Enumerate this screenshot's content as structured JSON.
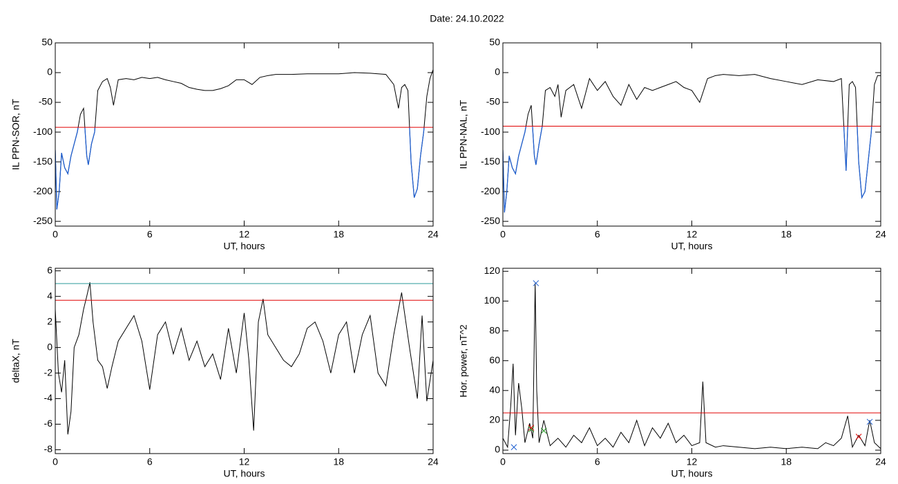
{
  "title": "Date:  24.10.2022",
  "chart_data": [
    {
      "type": "line",
      "ylabel": "IL PPN-SOR, nT",
      "xlabel": "UT, hours",
      "xlim": [
        0,
        24
      ],
      "xticks": [
        0,
        6,
        12,
        18,
        24
      ],
      "ylim": [
        -258,
        50
      ],
      "yticks": [
        50,
        0,
        -50,
        -100,
        -150,
        -200,
        -250
      ],
      "x": [
        0,
        0.1,
        0.25,
        0.4,
        0.6,
        0.8,
        1.0,
        1.2,
        1.4,
        1.6,
        1.8,
        2.0,
        2.1,
        2.3,
        2.5,
        2.7,
        3.0,
        3.3,
        3.5,
        3.7,
        4.0,
        4.5,
        5,
        5.5,
        6,
        6.5,
        7,
        7.5,
        8,
        8.5,
        9,
        9.5,
        10,
        10.5,
        11,
        11.5,
        12,
        12.5,
        13,
        13.5,
        14,
        15,
        16,
        17,
        18,
        19,
        20,
        21,
        21.5,
        21.8,
        22.0,
        22.2,
        22.4,
        22.6,
        22.8,
        23.0,
        23.2,
        23.4,
        23.6,
        23.8,
        24
      ],
      "series": [
        {
          "color": "#000000",
          "values": [
            -130,
            -230,
            -200,
            -135,
            -160,
            -170,
            -140,
            -120,
            -100,
            -70,
            -60,
            -140,
            -155,
            -120,
            -100,
            -30,
            -15,
            -10,
            -25,
            -55,
            -12,
            -10,
            -12,
            -8,
            -10,
            -8,
            -12,
            -15,
            -18,
            -25,
            -28,
            -30,
            -30,
            -27,
            -22,
            -12,
            -12,
            -20,
            -8,
            -5,
            -3,
            -3,
            -2,
            -2,
            -2,
            0,
            -1,
            -3,
            -20,
            -60,
            -25,
            -20,
            -30,
            -150,
            -210,
            -195,
            -140,
            -100,
            -40,
            -10,
            5
          ]
        }
      ],
      "hlines": [
        {
          "value": -92,
          "color": "#e00000",
          "below_color": "#1f5fd0"
        }
      ]
    },
    {
      "type": "line",
      "ylabel": "IL PPN-NAL, nT",
      "xlabel": "UT, hours",
      "xlim": [
        0,
        24
      ],
      "xticks": [
        0,
        6,
        12,
        18,
        24
      ],
      "ylim": [
        -258,
        50
      ],
      "yticks": [
        50,
        0,
        -50,
        -100,
        -150,
        -200,
        -250
      ],
      "x": [
        0,
        0.1,
        0.25,
        0.4,
        0.6,
        0.8,
        1.0,
        1.2,
        1.4,
        1.6,
        1.8,
        2.0,
        2.1,
        2.3,
        2.5,
        2.7,
        3.0,
        3.3,
        3.5,
        3.7,
        4.0,
        4.5,
        5,
        5.5,
        6,
        6.5,
        7,
        7.5,
        8,
        8.5,
        9,
        9.5,
        10,
        10.5,
        11,
        11.5,
        12,
        12.5,
        13,
        13.5,
        14,
        15,
        16,
        17,
        18,
        19,
        20,
        21,
        21.5,
        21.8,
        22.0,
        22.2,
        22.4,
        22.6,
        22.8,
        23.0,
        23.2,
        23.4,
        23.6,
        23.8,
        24
      ],
      "series": [
        {
          "color": "#000000",
          "values": [
            -130,
            -235,
            -200,
            -140,
            -160,
            -170,
            -140,
            -120,
            -100,
            -70,
            -55,
            -140,
            -155,
            -120,
            -90,
            -30,
            -25,
            -40,
            -20,
            -75,
            -30,
            -20,
            -60,
            -10,
            -30,
            -15,
            -40,
            -55,
            -20,
            -45,
            -25,
            -30,
            -25,
            -20,
            -15,
            -25,
            -30,
            -50,
            -10,
            -5,
            -3,
            -5,
            -3,
            -10,
            -15,
            -20,
            -12,
            -15,
            -10,
            -165,
            -20,
            -15,
            -25,
            -150,
            -210,
            -200,
            -150,
            -100,
            -20,
            -5,
            -5
          ]
        }
      ],
      "hlines": [
        {
          "value": -90,
          "color": "#e00000",
          "below_color": "#1f5fd0"
        }
      ]
    },
    {
      "type": "line",
      "ylabel": "deltaX, nT",
      "xlabel": "UT, hours",
      "xlim": [
        0,
        24
      ],
      "xticks": [
        0,
        6,
        12,
        18,
        24
      ],
      "ylim": [
        -8.3,
        6.2
      ],
      "yticks": [
        6,
        4,
        2,
        0,
        -2,
        -4,
        -6,
        -8
      ],
      "x": [
        0,
        0.2,
        0.4,
        0.6,
        0.8,
        1.0,
        1.2,
        1.5,
        1.8,
        2.0,
        2.2,
        2.4,
        2.7,
        3.0,
        3.3,
        3.6,
        4,
        4.5,
        5,
        5.5,
        6,
        6.5,
        7,
        7.5,
        8,
        8.5,
        9,
        9.5,
        10,
        10.5,
        11,
        11.5,
        12,
        12.3,
        12.6,
        12.9,
        13.2,
        13.5,
        14,
        14.5,
        15,
        15.5,
        16,
        16.5,
        17,
        17.5,
        18,
        18.5,
        19,
        19.5,
        20,
        20.5,
        21,
        21.5,
        22,
        22.5,
        23,
        23.3,
        23.6,
        24
      ],
      "series": [
        {
          "color": "#000000",
          "values": [
            3,
            -2,
            -3.5,
            -1,
            -6.8,
            -5,
            0,
            1,
            3,
            4,
            5.1,
            2,
            -1,
            -1.5,
            -3.2,
            -1.5,
            0.5,
            1.5,
            2.5,
            0.5,
            -3.3,
            1,
            2,
            -0.5,
            1.5,
            -1,
            0.5,
            -1.5,
            -0.5,
            -2.5,
            1.5,
            -2,
            2.7,
            -1,
            -6.5,
            2,
            3.8,
            1,
            0,
            -1,
            -1.5,
            -0.5,
            1.5,
            2,
            0.5,
            -2,
            1,
            2,
            -2,
            1,
            2.5,
            -2,
            -3,
            1,
            4.3,
            0,
            -4,
            2.5,
            -4.2,
            -1
          ]
        }
      ],
      "hlines": [
        {
          "value": 5,
          "color": "#2a9a9a"
        },
        {
          "value": 3.7,
          "color": "#e00000"
        }
      ]
    },
    {
      "type": "line",
      "ylabel": "Hor. power, nT^2",
      "xlabel": "UT, hours",
      "xlim": [
        0,
        24
      ],
      "xticks": [
        0,
        6,
        12,
        18,
        24
      ],
      "ylim": [
        -2.3,
        122
      ],
      "yticks": [
        0,
        20,
        40,
        60,
        80,
        100,
        120
      ],
      "x": [
        0,
        0.3,
        0.5,
        0.65,
        0.8,
        1.0,
        1.2,
        1.4,
        1.7,
        1.9,
        2.05,
        2.15,
        2.3,
        2.6,
        3.0,
        3.5,
        4,
        4.5,
        5,
        5.5,
        6,
        6.5,
        7,
        7.5,
        8,
        8.5,
        9,
        9.5,
        10,
        10.5,
        11,
        11.5,
        12,
        12.5,
        12.7,
        12.9,
        13.5,
        14,
        15,
        16,
        17,
        18,
        19,
        20,
        20.5,
        21,
        21.5,
        21.9,
        22.2,
        22.6,
        23,
        23.3,
        23.6,
        24
      ],
      "series": [
        {
          "color": "#000000",
          "values": [
            8,
            2,
            30,
            58,
            10,
            45,
            28,
            5,
            18,
            8,
            112,
            40,
            5,
            20,
            3,
            8,
            2,
            10,
            5,
            15,
            3,
            8,
            2,
            12,
            5,
            20,
            3,
            15,
            8,
            18,
            5,
            10,
            3,
            5,
            46,
            5,
            2,
            3,
            2,
            1,
            2,
            1,
            2,
            1,
            5,
            3,
            8,
            23,
            2,
            10,
            3,
            20,
            5,
            1
          ]
        }
      ],
      "hlines": [
        {
          "value": 25,
          "color": "#e00000"
        }
      ],
      "markers": [
        {
          "x": 2.1,
          "y": 112,
          "color": "#1f5fd0"
        },
        {
          "x": 0.7,
          "y": 2,
          "color": "#1f5fd0"
        },
        {
          "x": 23.3,
          "y": 19,
          "color": "#1f5fd0"
        },
        {
          "x": 1.8,
          "y": 14,
          "color": "#2a9a2a"
        },
        {
          "x": 2.6,
          "y": 13,
          "color": "#2a9a2a"
        },
        {
          "x": 1.8,
          "y": 15,
          "color": "#e00000"
        },
        {
          "x": 22.6,
          "y": 9,
          "color": "#e00000"
        }
      ]
    }
  ]
}
